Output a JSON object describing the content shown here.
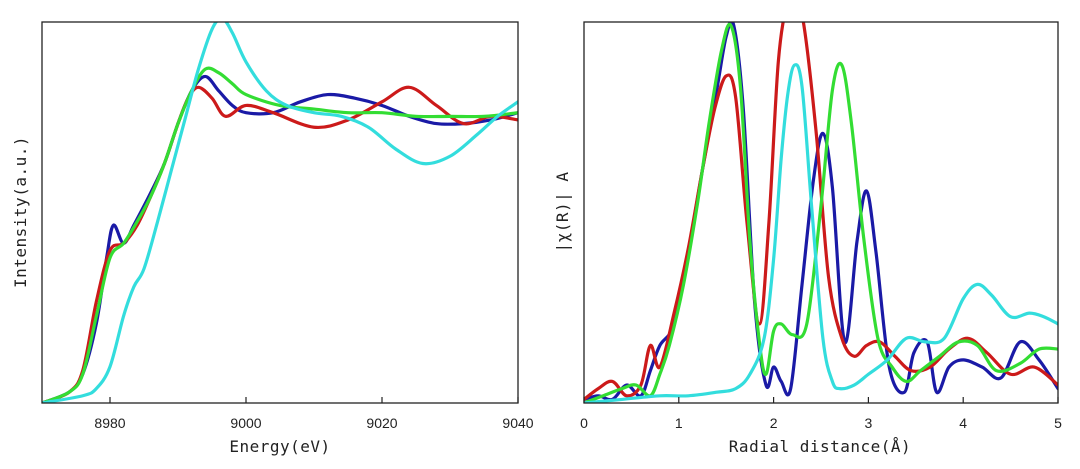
{
  "chart_data": [
    {
      "type": "line",
      "title": "",
      "xlabel": "Energy(eV)",
      "ylabel": "Intensity(a.u.)",
      "xlim": [
        8970,
        9040
      ],
      "ylim": [
        0,
        1.05
      ],
      "xticks": [
        8980,
        9000,
        9020,
        9040
      ],
      "xtick_labels": [
        "8980",
        "9000",
        "9020",
        "9040"
      ],
      "yticks": [],
      "grid": false,
      "legend": "none",
      "series": [
        {
          "name": "dark-blue",
          "color": "#1a1aa6",
          "x": [
            8970,
            8974,
            8976,
            8978,
            8979.5,
            8980.5,
            8982,
            8983.5,
            8986,
            8988,
            8990,
            8992,
            8994,
            8996,
            8998,
            9000,
            9004,
            9008,
            9012,
            9016,
            9020,
            9024,
            9028,
            9032,
            9036,
            9040
          ],
          "y": [
            0.0,
            0.03,
            0.08,
            0.22,
            0.4,
            0.49,
            0.44,
            0.49,
            0.58,
            0.66,
            0.77,
            0.86,
            0.9,
            0.86,
            0.82,
            0.8,
            0.8,
            0.83,
            0.85,
            0.84,
            0.82,
            0.79,
            0.77,
            0.77,
            0.78,
            0.8
          ]
        },
        {
          "name": "red",
          "color": "#cc1a1a",
          "x": [
            8970,
            8974,
            8976,
            8978,
            8980,
            8982,
            8984,
            8986,
            8988,
            8990,
            8991.5,
            8993,
            8995,
            8997,
            9000,
            9004,
            9010,
            9015,
            9020,
            9024,
            9028,
            9032,
            9036,
            9040
          ],
          "y": [
            0.0,
            0.03,
            0.09,
            0.28,
            0.42,
            0.44,
            0.49,
            0.57,
            0.66,
            0.77,
            0.84,
            0.87,
            0.84,
            0.79,
            0.82,
            0.8,
            0.76,
            0.78,
            0.83,
            0.87,
            0.82,
            0.77,
            0.79,
            0.78
          ]
        },
        {
          "name": "green",
          "color": "#33dd33",
          "x": [
            8970,
            8974,
            8976,
            8978,
            8980,
            8982,
            8984,
            8986,
            8988,
            8990,
            8992,
            8994,
            8996,
            8998,
            9000,
            9005,
            9010,
            9015,
            9020,
            9025,
            9030,
            9035,
            9040
          ],
          "y": [
            0.0,
            0.03,
            0.08,
            0.24,
            0.4,
            0.44,
            0.5,
            0.57,
            0.66,
            0.77,
            0.86,
            0.92,
            0.91,
            0.88,
            0.85,
            0.82,
            0.81,
            0.8,
            0.8,
            0.79,
            0.79,
            0.79,
            0.8
          ]
        },
        {
          "name": "cyan",
          "color": "#33dddd",
          "x": [
            8970,
            8976,
            8978,
            8980,
            8982,
            8983.5,
            8985,
            8987,
            8989,
            8991,
            8993,
            8995,
            8996.5,
            8998,
            9000,
            9003,
            9006,
            9010,
            9014,
            9018,
            9022,
            9026,
            9030,
            9034,
            9037,
            9040
          ],
          "y": [
            0.0,
            0.02,
            0.04,
            0.1,
            0.24,
            0.32,
            0.37,
            0.5,
            0.64,
            0.78,
            0.92,
            1.03,
            1.06,
            1.02,
            0.94,
            0.86,
            0.82,
            0.8,
            0.79,
            0.76,
            0.7,
            0.66,
            0.68,
            0.74,
            0.79,
            0.83
          ]
        }
      ]
    },
    {
      "type": "line",
      "title": "",
      "xlabel": "Radial distance(Å)",
      "ylabel": "|χ(R)| A",
      "xlim": [
        0,
        5
      ],
      "ylim": [
        0,
        1.06
      ],
      "xticks": [
        0,
        1,
        2,
        3,
        4,
        5
      ],
      "xtick_labels": [
        "0",
        "1",
        "2",
        "3",
        "4",
        "5"
      ],
      "yticks": [],
      "grid": false,
      "legend": "none",
      "series": [
        {
          "name": "dark-blue",
          "color": "#1a1aa6",
          "x": [
            0,
            0.15,
            0.3,
            0.45,
            0.6,
            0.7,
            0.8,
            0.95,
            1.1,
            1.25,
            1.4,
            1.5,
            1.58,
            1.68,
            1.8,
            1.92,
            2.0,
            2.08,
            2.18,
            2.3,
            2.42,
            2.52,
            2.62,
            2.75,
            2.88,
            2.98,
            3.08,
            3.22,
            3.38,
            3.48,
            3.62,
            3.72,
            3.85,
            4.0,
            4.2,
            4.4,
            4.6,
            4.8,
            5.0
          ],
          "y": [
            0.01,
            0.02,
            0.01,
            0.05,
            0.02,
            0.09,
            0.16,
            0.22,
            0.42,
            0.65,
            0.87,
            1.02,
            1.05,
            0.82,
            0.28,
            0.05,
            0.1,
            0.06,
            0.04,
            0.33,
            0.62,
            0.75,
            0.6,
            0.17,
            0.45,
            0.59,
            0.42,
            0.1,
            0.03,
            0.14,
            0.17,
            0.03,
            0.1,
            0.12,
            0.1,
            0.07,
            0.17,
            0.12,
            0.04
          ]
        },
        {
          "name": "red",
          "color": "#cc1a1a",
          "x": [
            0,
            0.15,
            0.3,
            0.45,
            0.6,
            0.7,
            0.8,
            0.95,
            1.1,
            1.25,
            1.38,
            1.5,
            1.6,
            1.72,
            1.85,
            1.95,
            2.05,
            2.15,
            2.22,
            2.32,
            2.45,
            2.58,
            2.72,
            2.85,
            2.98,
            3.12,
            3.28,
            3.45,
            3.65,
            3.85,
            4.05,
            4.25,
            4.5,
            4.75,
            5.0
          ],
          "y": [
            0.01,
            0.04,
            0.06,
            0.02,
            0.05,
            0.16,
            0.1,
            0.25,
            0.43,
            0.65,
            0.82,
            0.91,
            0.85,
            0.5,
            0.22,
            0.5,
            0.95,
            1.12,
            1.14,
            1.05,
            0.75,
            0.35,
            0.18,
            0.13,
            0.16,
            0.17,
            0.13,
            0.09,
            0.1,
            0.15,
            0.18,
            0.14,
            0.08,
            0.1,
            0.05
          ]
        },
        {
          "name": "green",
          "color": "#33dd33",
          "x": [
            0,
            0.2,
            0.4,
            0.55,
            0.7,
            0.8,
            0.9,
            1.05,
            1.2,
            1.32,
            1.45,
            1.55,
            1.65,
            1.75,
            1.85,
            1.92,
            2.0,
            2.08,
            2.2,
            2.35,
            2.5,
            2.62,
            2.72,
            2.82,
            2.95,
            3.1,
            3.25,
            3.4,
            3.55,
            3.75,
            3.95,
            4.15,
            4.35,
            4.6,
            4.8,
            5.0
          ],
          "y": [
            0.0,
            0.02,
            0.04,
            0.05,
            0.02,
            0.08,
            0.16,
            0.33,
            0.56,
            0.78,
            0.98,
            1.05,
            0.88,
            0.45,
            0.17,
            0.08,
            0.2,
            0.22,
            0.19,
            0.22,
            0.55,
            0.87,
            0.94,
            0.78,
            0.46,
            0.18,
            0.1,
            0.06,
            0.09,
            0.13,
            0.17,
            0.16,
            0.09,
            0.11,
            0.15,
            0.15
          ]
        },
        {
          "name": "cyan",
          "color": "#33dddd",
          "x": [
            0,
            0.4,
            0.8,
            1.1,
            1.4,
            1.6,
            1.75,
            1.9,
            2.0,
            2.08,
            2.15,
            2.22,
            2.3,
            2.4,
            2.52,
            2.62,
            2.7,
            2.85,
            3.0,
            3.2,
            3.4,
            3.6,
            3.8,
            4.0,
            4.15,
            4.3,
            4.5,
            4.7,
            4.85,
            5.0
          ],
          "y": [
            0.0,
            0.01,
            0.02,
            0.02,
            0.03,
            0.04,
            0.08,
            0.18,
            0.4,
            0.68,
            0.86,
            0.94,
            0.88,
            0.55,
            0.18,
            0.06,
            0.04,
            0.05,
            0.08,
            0.12,
            0.18,
            0.17,
            0.18,
            0.29,
            0.33,
            0.3,
            0.24,
            0.25,
            0.24,
            0.22
          ]
        }
      ]
    }
  ]
}
